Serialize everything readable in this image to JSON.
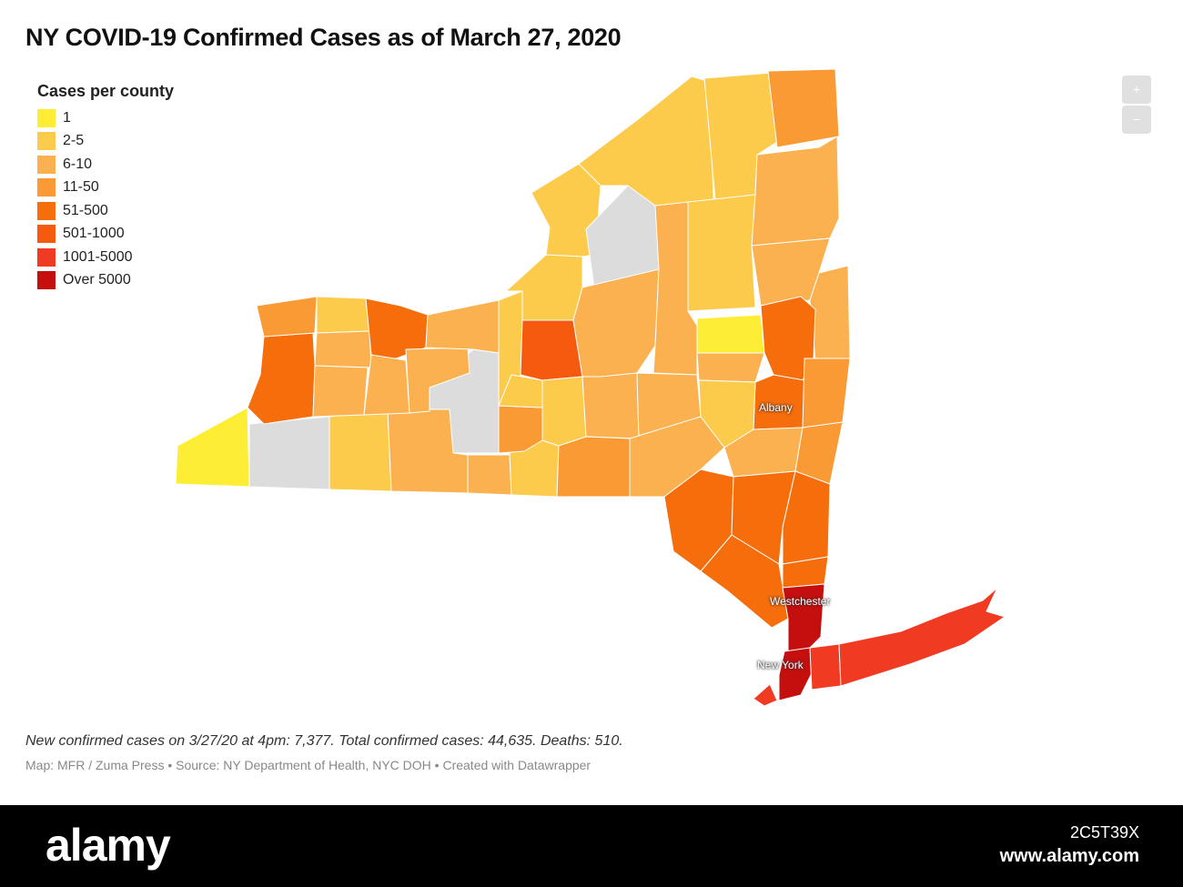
{
  "title": "NY COVID-19 Confirmed Cases as of March 27, 2020",
  "legend": {
    "title": "Cases per county",
    "items": [
      {
        "label": "1",
        "color": "#fdee35"
      },
      {
        "label": "2-5",
        "color": "#fccb4c"
      },
      {
        "label": "6-10",
        "color": "#fbb14f"
      },
      {
        "label": "11-50",
        "color": "#f99a34"
      },
      {
        "label": "51-500",
        "color": "#f66d0c"
      },
      {
        "label": "501-1000",
        "color": "#f55a0e"
      },
      {
        "label": "1001-5000",
        "color": "#f13a22"
      },
      {
        "label": "Over 5000",
        "color": "#c50f0f"
      }
    ]
  },
  "no_data_color": "#dcdcdc",
  "map_labels": {
    "albany": "Albany",
    "westchester": "Westchester",
    "new_york": "New York"
  },
  "zoom": {
    "in": "+",
    "out": "−"
  },
  "notes": "New confirmed cases on 3/27/20 at 4pm: 7,377. Total confirmed cases: 44,635. Deaths: 510.",
  "source": "Map: MFR / Zuma Press • Source: NY Department of Health, NYC DOH • Created with Datawrapper",
  "watermark": {
    "logo": "alamy",
    "image_id": "2C5T39X",
    "url": "www.alamy.com"
  }
}
